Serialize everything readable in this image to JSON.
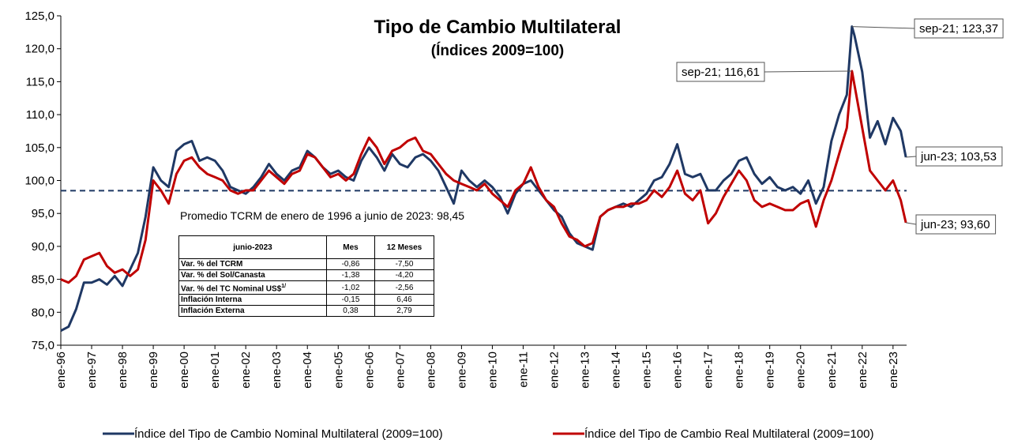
{
  "chart_data": {
    "type": "line",
    "title": "Tipo de Cambio Multilateral",
    "subtitle": "(Índices 2009=100)",
    "x": [
      1996,
      1996.25,
      1996.5,
      1996.75,
      1997,
      1997.25,
      1997.5,
      1997.75,
      1998,
      1998.25,
      1998.5,
      1998.75,
      1999,
      1999.25,
      1999.5,
      1999.75,
      2000,
      2000.25,
      2000.5,
      2000.75,
      2001,
      2001.25,
      2001.5,
      2001.75,
      2002,
      2002.25,
      2002.5,
      2002.75,
      2003,
      2003.25,
      2003.5,
      2003.75,
      2004,
      2004.25,
      2004.5,
      2004.75,
      2005,
      2005.25,
      2005.5,
      2005.75,
      2006,
      2006.25,
      2006.5,
      2006.75,
      2007,
      2007.25,
      2007.5,
      2007.75,
      2008,
      2008.25,
      2008.5,
      2008.75,
      2009,
      2009.25,
      2009.5,
      2009.75,
      2010,
      2010.25,
      2010.5,
      2010.75,
      2011,
      2011.25,
      2011.5,
      2011.75,
      2012,
      2012.25,
      2012.5,
      2012.75,
      2013,
      2013.25,
      2013.5,
      2013.75,
      2014,
      2014.25,
      2014.5,
      2014.75,
      2015,
      2015.25,
      2015.5,
      2015.75,
      2016,
      2016.25,
      2016.5,
      2016.75,
      2017,
      2017.25,
      2017.5,
      2017.75,
      2018,
      2018.25,
      2018.5,
      2018.75,
      2019,
      2019.25,
      2019.5,
      2019.75,
      2020,
      2020.25,
      2020.5,
      2020.75,
      2021,
      2021.25,
      2021.5,
      2021.667,
      2021.75,
      2022,
      2022.25,
      2022.5,
      2022.75,
      2023,
      2023.25,
      2023.417
    ],
    "series": [
      {
        "name": "Índice del Tipo de Cambio Nominal Multilateral (2009=100)",
        "color": "#1f3864",
        "values": [
          77.2,
          77.8,
          80.5,
          84.5,
          84.5,
          85.0,
          84.2,
          85.5,
          84.0,
          86.5,
          89.0,
          94.5,
          102.0,
          100.0,
          99.0,
          104.5,
          105.5,
          106.0,
          103.0,
          103.5,
          103.0,
          101.5,
          99.0,
          98.5,
          98.0,
          99.0,
          100.5,
          102.5,
          101.0,
          100.0,
          101.5,
          102.0,
          104.5,
          103.5,
          102.0,
          101.0,
          101.5,
          100.5,
          100.0,
          103.0,
          105.0,
          103.5,
          101.5,
          104.0,
          102.5,
          102.0,
          103.5,
          104.0,
          103.0,
          101.5,
          99.0,
          96.5,
          101.5,
          100.0,
          99.0,
          100.0,
          99.0,
          97.5,
          95.0,
          98.0,
          99.5,
          100.0,
          98.5,
          97.0,
          95.5,
          94.5,
          92.0,
          90.5,
          90.0,
          89.5,
          94.5,
          95.5,
          96.0,
          96.5,
          96.0,
          97.0,
          98.0,
          100.0,
          100.5,
          102.5,
          105.5,
          101.0,
          100.5,
          101.0,
          98.5,
          98.5,
          100.0,
          101.0,
          103.0,
          103.5,
          101.0,
          99.5,
          100.5,
          99.0,
          98.5,
          99.0,
          98.0,
          100.0,
          96.5,
          99.0,
          106.0,
          110.0,
          113.0,
          123.37,
          122.0,
          116.5,
          106.5,
          109.0,
          105.5,
          109.5,
          107.5,
          103.53
        ]
      },
      {
        "name": "Índice del Tipo de Cambio Real Multilateral (2009=100)",
        "color": "#c00000",
        "values": [
          85.0,
          84.5,
          85.5,
          88.0,
          88.5,
          89.0,
          87.0,
          86.0,
          86.5,
          85.5,
          86.5,
          91.0,
          100.0,
          98.5,
          96.5,
          101.0,
          103.0,
          103.5,
          102.0,
          101.0,
          100.5,
          100.0,
          98.5,
          98.0,
          98.5,
          98.5,
          100.0,
          101.5,
          100.5,
          99.5,
          101.0,
          101.5,
          104.0,
          103.5,
          102.0,
          100.5,
          101.0,
          100.0,
          101.0,
          104.0,
          106.5,
          105.0,
          102.5,
          104.5,
          105.0,
          106.0,
          106.5,
          104.5,
          104.0,
          102.5,
          101.0,
          100.0,
          99.5,
          99.0,
          98.5,
          99.5,
          98.0,
          97.0,
          96.0,
          98.5,
          99.5,
          102.0,
          99.0,
          97.0,
          96.0,
          93.5,
          91.5,
          91.0,
          90.0,
          90.5,
          94.5,
          95.5,
          96.0,
          96.0,
          96.5,
          96.5,
          97.0,
          98.5,
          97.5,
          99.0,
          101.5,
          98.0,
          97.0,
          98.5,
          93.5,
          95.0,
          97.5,
          99.5,
          101.5,
          100.0,
          97.0,
          96.0,
          96.5,
          96.0,
          95.5,
          95.5,
          96.5,
          97.0,
          93.0,
          97.0,
          100.0,
          104.0,
          108.0,
          116.61,
          114.5,
          108.0,
          101.5,
          100.0,
          98.5,
          100.0,
          97.0,
          93.6
        ]
      }
    ],
    "xlim": [
      1996,
      2023.44
    ],
    "xticks": [
      {
        "value": 1996,
        "label": "ene-96"
      },
      {
        "value": 1997,
        "label": "ene-97"
      },
      {
        "value": 1998,
        "label": "ene-98"
      },
      {
        "value": 1999,
        "label": "ene-99"
      },
      {
        "value": 2000,
        "label": "ene-00"
      },
      {
        "value": 2001,
        "label": "ene-01"
      },
      {
        "value": 2002,
        "label": "ene-02"
      },
      {
        "value": 2003,
        "label": "ene-03"
      },
      {
        "value": 2004,
        "label": "ene-04"
      },
      {
        "value": 2005,
        "label": "ene-05"
      },
      {
        "value": 2006,
        "label": "ene-06"
      },
      {
        "value": 2007,
        "label": "ene-07"
      },
      {
        "value": 2008,
        "label": "ene-08"
      },
      {
        "value": 2009,
        "label": "ene-09"
      },
      {
        "value": 2010,
        "label": "ene-10"
      },
      {
        "value": 2011,
        "label": "ene-11"
      },
      {
        "value": 2012,
        "label": "ene-12"
      },
      {
        "value": 2013,
        "label": "ene-13"
      },
      {
        "value": 2014,
        "label": "ene-14"
      },
      {
        "value": 2015,
        "label": "ene-15"
      },
      {
        "value": 2016,
        "label": "ene-16"
      },
      {
        "value": 2017,
        "label": "ene-17"
      },
      {
        "value": 2018,
        "label": "ene-18"
      },
      {
        "value": 2019,
        "label": "ene-19"
      },
      {
        "value": 2020,
        "label": "ene-20"
      },
      {
        "value": 2021,
        "label": "ene-21"
      },
      {
        "value": 2022,
        "label": "ene-22"
      },
      {
        "value": 2023,
        "label": "ene-23"
      }
    ],
    "ylim": [
      75,
      125
    ],
    "yticks": [
      {
        "value": 75,
        "label": "75,0"
      },
      {
        "value": 80,
        "label": "80,0"
      },
      {
        "value": 85,
        "label": "85,0"
      },
      {
        "value": 90,
        "label": "90,0"
      },
      {
        "value": 95,
        "label": "95,0"
      },
      {
        "value": 100,
        "label": "100,0"
      },
      {
        "value": 105,
        "label": "105,0"
      },
      {
        "value": 110,
        "label": "110,0"
      },
      {
        "value": 115,
        "label": "115,0"
      },
      {
        "value": 120,
        "label": "120,0"
      },
      {
        "value": 125,
        "label": "125,0"
      }
    ],
    "grid": false,
    "mean_line": {
      "value": 98.45,
      "label": "Promedio TCRM de enero de 1996 a junio de 2023: 98,45",
      "color": "#1f3864"
    },
    "annotations": [
      {
        "text": "sep-21; 123,37",
        "x": 2021.667,
        "y": 123.37
      },
      {
        "text": "sep-21; 116,61",
        "x": 2021.667,
        "y": 116.61
      },
      {
        "text": "jun-23; 103,53",
        "x": 2023.417,
        "y": 103.53
      },
      {
        "text": "jun-23; 93,60",
        "x": 2023.417,
        "y": 93.6
      }
    ],
    "legend": "bottom"
  },
  "table": {
    "header": [
      "junio-2023",
      "Mes",
      "12 Meses"
    ],
    "note_mark": "1/",
    "rows": [
      [
        "Var. % del TCRM",
        "-0,86",
        "-7,50"
      ],
      [
        "Var. % del Sol/Canasta",
        "-1,38",
        "-4,20"
      ],
      [
        "Var. % del TC Nominal US$",
        "-1,02",
        "-2,56"
      ],
      [
        "Inflación Interna",
        "-0,15",
        "6,46"
      ],
      [
        "Inflación Externa",
        "0,38",
        "2,79"
      ]
    ]
  }
}
